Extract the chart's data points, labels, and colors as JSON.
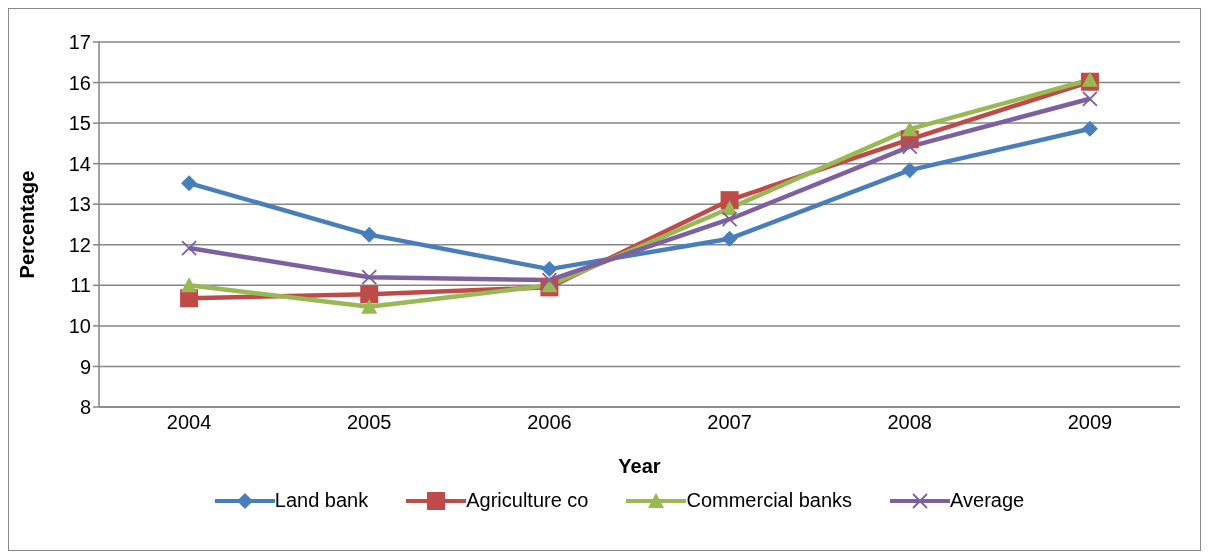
{
  "chart_data": {
    "type": "line",
    "xlabel": "Year",
    "ylabel": "Percentage",
    "categories": [
      "2004",
      "2005",
      "2006",
      "2007",
      "2008",
      "2009"
    ],
    "series": [
      {
        "name": "Land bank",
        "color": "#4a7ebb",
        "marker": "diamond",
        "values": [
          13.52,
          12.25,
          11.4,
          12.15,
          13.84,
          14.86
        ]
      },
      {
        "name": "Agriculture co",
        "color": "#be4b48",
        "marker": "square",
        "values": [
          10.68,
          10.78,
          10.95,
          13.1,
          14.6,
          16.02
        ]
      },
      {
        "name": "Commercial banks",
        "color": "#98b954",
        "marker": "triangle",
        "values": [
          11.0,
          10.47,
          11.0,
          12.9,
          14.85,
          16.07
        ]
      },
      {
        "name": "Average",
        "color": "#7d60a0",
        "marker": "cross",
        "values": [
          11.92,
          11.2,
          11.13,
          12.63,
          14.42,
          15.6
        ]
      }
    ],
    "ylim": [
      8,
      17
    ],
    "yticks": [
      8,
      9,
      10,
      11,
      12,
      13,
      14,
      15,
      16,
      17
    ],
    "grid": "y",
    "legend": "bottom",
    "line_style": "solid"
  }
}
